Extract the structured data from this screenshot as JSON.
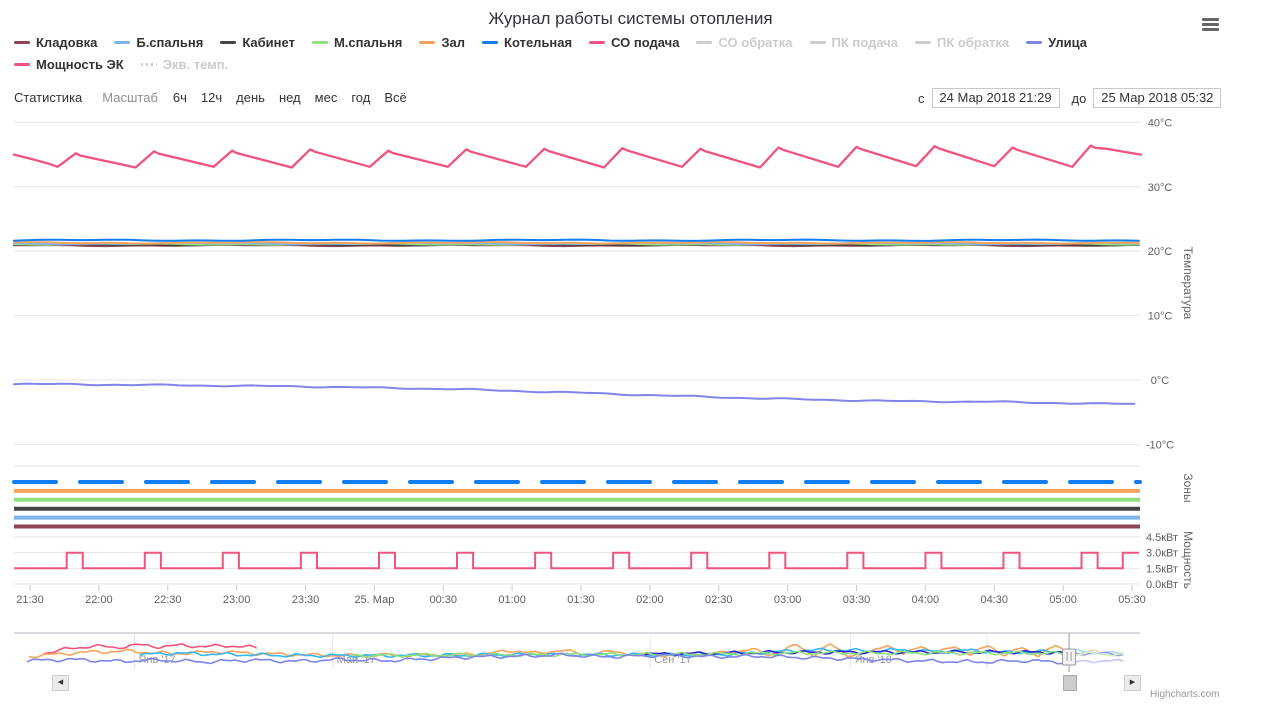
{
  "header": {
    "title": "Журнал работы системы отопления"
  },
  "legend": {
    "rows": [
      [
        {
          "label": "Кладовка",
          "color": "#8d4653",
          "enabled": true
        },
        {
          "label": "Б.спальня",
          "color": "#7cb5ec",
          "enabled": true
        },
        {
          "label": "Кабинет",
          "color": "#434348",
          "enabled": true
        },
        {
          "label": "М.спальня",
          "color": "#90e07d",
          "enabled": true
        },
        {
          "label": "Зал",
          "color": "#f7a35c",
          "enabled": true
        },
        {
          "label": "Котельная",
          "color": "#117df0",
          "enabled": true
        },
        {
          "label": "СО подача",
          "color": "#f0537d",
          "enabled": true
        },
        {
          "label": "СО обратка",
          "color": "#cccccc",
          "enabled": false
        },
        {
          "label": "ПК подача",
          "color": "#cccccc",
          "enabled": false
        },
        {
          "label": "ПК обратка",
          "color": "#cccccc",
          "enabled": false
        },
        {
          "label": "Улица",
          "color": "#8085e9",
          "enabled": true
        }
      ],
      [
        {
          "label": "Мощность ЭК",
          "color": "#f0537d",
          "enabled": true
        },
        {
          "label": "Экв. темп.",
          "color": "#cccccc",
          "enabled": false,
          "dotted": true
        }
      ]
    ]
  },
  "toolbar": {
    "statistics_label": "Статистика",
    "zoom_label": "Масштаб",
    "range_buttons": [
      "6ч",
      "12ч",
      "день",
      "нед",
      "мес",
      "год",
      "Всё"
    ],
    "from_label": "с",
    "from_value": "24 Мар 2018 21:29",
    "to_label": "до",
    "to_value": "25 Мар 2018 05:32"
  },
  "credits": "Highcharts.com",
  "chart_data": {
    "type": "line",
    "title": "Журнал работы системы отопления",
    "x_axis": {
      "unit": "time",
      "start": "24 Мар 2018 21:29",
      "end": "25 Мар 2018 05:32",
      "ticks": [
        {
          "t": 1,
          "label": "21:30"
        },
        {
          "t": 31,
          "label": "22:00"
        },
        {
          "t": 61,
          "label": "22:30"
        },
        {
          "t": 91,
          "label": "23:00"
        },
        {
          "t": 121,
          "label": "23:30"
        },
        {
          "t": 151,
          "label": "25. Мар"
        },
        {
          "t": 181,
          "label": "00:30"
        },
        {
          "t": 211,
          "label": "01:00"
        },
        {
          "t": 241,
          "label": "01:30"
        },
        {
          "t": 271,
          "label": "02:00"
        },
        {
          "t": 301,
          "label": "02:30"
        },
        {
          "t": 331,
          "label": "03:00"
        },
        {
          "t": 361,
          "label": "03:30"
        },
        {
          "t": 391,
          "label": "04:00"
        },
        {
          "t": 421,
          "label": "04:30"
        },
        {
          "t": 451,
          "label": "05:00"
        },
        {
          "t": 481,
          "label": "05:30"
        }
      ]
    },
    "y_axes": [
      {
        "id": "temp",
        "title": "Температура",
        "ticks": [
          {
            "v": 40,
            "label": "40°C"
          },
          {
            "v": 30,
            "label": "30°C"
          },
          {
            "v": 20,
            "label": "20°C"
          },
          {
            "v": 10,
            "label": "10°C"
          },
          {
            "v": 0,
            "label": "0°C"
          },
          {
            "v": -10,
            "label": "-10°C"
          }
        ],
        "range": [
          -13,
          41.5
        ]
      },
      {
        "id": "zones",
        "title": "Зоны"
      },
      {
        "id": "power",
        "title": "Мощность",
        "ticks": [
          {
            "v": 4.5,
            "label": "4.5кВт"
          },
          {
            "v": 3.0,
            "label": "3.0кВт"
          },
          {
            "v": 1.5,
            "label": "1.5кВт"
          },
          {
            "v": 0.0,
            "label": "0.0кВт"
          }
        ],
        "range": [
          0,
          4.5
        ]
      }
    ],
    "supply": {
      "name": "СО подача",
      "axis": "temp",
      "unit": "°C",
      "color": "#f0537d",
      "lead_in": [
        [
          -6,
          35.0
        ],
        [
          3,
          34.2
        ],
        [
          9,
          33.6
        ]
      ],
      "cycles": [
        [
          13,
          33.1,
          21,
          35.2
        ],
        [
          47,
          33.0,
          55,
          35.5
        ],
        [
          81,
          33.1,
          89,
          35.6
        ],
        [
          115,
          33.0,
          123,
          35.8
        ],
        [
          149,
          33.1,
          157,
          35.6
        ],
        [
          183,
          33.1,
          191,
          35.8
        ],
        [
          217,
          33.1,
          225,
          35.9
        ],
        [
          251,
          33.0,
          259,
          36.0
        ],
        [
          285,
          33.1,
          293,
          35.9
        ],
        [
          319,
          33.0,
          327,
          36.1
        ],
        [
          353,
          33.1,
          361,
          36.2
        ],
        [
          387,
          33.2,
          395,
          36.3
        ],
        [
          421,
          33.2,
          429,
          36.1
        ],
        [
          455,
          33.1,
          463,
          36.4
        ]
      ],
      "tail": [
        [
          470,
          35.9
        ],
        [
          478,
          35.4
        ],
        [
          485,
          35.0
        ]
      ]
    },
    "rooms": [
      {
        "name": "Котельная",
        "color": "#117df0",
        "value_c": 21.7
      },
      {
        "name": "Зал",
        "color": "#f7a35c",
        "value_c": 21.3
      },
      {
        "name": "Б.спальня",
        "color": "#7cb5ec",
        "value_c": 21.2
      },
      {
        "name": "М.спальня",
        "color": "#90e07d",
        "value_c": 21.1
      },
      {
        "name": "Кабинет",
        "color": "#434348",
        "value_c": 21.0
      },
      {
        "name": "Кладовка",
        "color": "#8d4653",
        "value_c": 20.9
      }
    ],
    "street": {
      "name": "Улица",
      "axis": "temp",
      "unit": "°C",
      "color": "#8085e9",
      "points": [
        [
          -6,
          -0.6
        ],
        [
          60,
          -0.8
        ],
        [
          119,
          -1.0
        ],
        [
          184,
          -1.4
        ],
        [
          241,
          -2.0
        ],
        [
          293,
          -2.6
        ],
        [
          336,
          -3.0
        ],
        [
          380,
          -3.3
        ],
        [
          423,
          -3.4
        ],
        [
          467,
          -3.7
        ],
        [
          485,
          -3.7
        ]
      ]
    },
    "zones_series": [
      {
        "name": "Котельная",
        "color": "#117df0",
        "line": "dashed",
        "state": "on"
      },
      {
        "name": "Зал",
        "color": "#f7a35c",
        "line": "solid",
        "state": "on"
      },
      {
        "name": "М.спальня",
        "color": "#90e07d",
        "line": "solid",
        "state": "on"
      },
      {
        "name": "Кабинет",
        "color": "#434348",
        "line": "solid",
        "state": "on"
      },
      {
        "name": "Б.спальня",
        "color": "#7cb5ec",
        "line": "solid",
        "state": "on"
      },
      {
        "name": "Кладовка",
        "color": "#8d4653",
        "line": "solid",
        "state": "on"
      }
    ],
    "power": {
      "name": "Мощность ЭК",
      "axis": "power",
      "unit": "кВт",
      "color": "#f0537d",
      "baseline_kw": 1.5,
      "peak_kw": 3.0,
      "pulse_minutes": 7,
      "pulse_starts_min": [
        17,
        51,
        85,
        119,
        153,
        187,
        221,
        255,
        289,
        323,
        357,
        391,
        425,
        459,
        477
      ]
    },
    "navigator": {
      "labels": [
        {
          "text": "Янв '17",
          "f": 0.107
        },
        {
          "text": "Май '17",
          "f": 0.283
        },
        {
          "text": "Сен '17",
          "f": 0.565
        },
        {
          "text": "Янв '18",
          "f": 0.743
        }
      ],
      "extra_gridline_f": 0.864,
      "handle_f": 0.937,
      "series": [
        {
          "name": "СО подача",
          "color": "#f0537d",
          "points": [
            [
              0.027,
              0.5
            ],
            [
              0.05,
              0.36
            ],
            [
              0.07,
              0.28
            ],
            [
              0.09,
              0.33
            ],
            [
              0.11,
              0.25
            ],
            [
              0.13,
              0.3
            ],
            [
              0.15,
              0.26
            ],
            [
              0.17,
              0.3
            ],
            [
              0.19,
              0.27
            ],
            [
              0.205,
              0.3
            ],
            [
              0.215,
              0.34
            ]
          ]
        },
        {
          "name": "Зал",
          "color": "#f7a35c",
          "points": [
            [
              0.014,
              0.6
            ],
            [
              0.06,
              0.48
            ],
            [
              0.1,
              0.44
            ],
            [
              0.14,
              0.52
            ],
            [
              0.18,
              0.46
            ],
            [
              0.22,
              0.52
            ],
            [
              0.26,
              0.56
            ],
            [
              0.3,
              0.58
            ],
            [
              0.34,
              0.56
            ],
            [
              0.38,
              0.57
            ],
            [
              0.42,
              0.52
            ],
            [
              0.445,
              0.42
            ],
            [
              0.465,
              0.52
            ],
            [
              0.485,
              0.4
            ],
            [
              0.505,
              0.54
            ],
            [
              0.53,
              0.46
            ],
            [
              0.56,
              0.56
            ],
            [
              0.6,
              0.54
            ],
            [
              0.63,
              0.5
            ],
            [
              0.655,
              0.38
            ],
            [
              0.67,
              0.56
            ],
            [
              0.695,
              0.26
            ],
            [
              0.71,
              0.56
            ],
            [
              0.725,
              0.24
            ],
            [
              0.74,
              0.56
            ],
            [
              0.76,
              0.5
            ],
            [
              0.775,
              0.22
            ],
            [
              0.79,
              0.56
            ],
            [
              0.805,
              0.26
            ],
            [
              0.82,
              0.52
            ],
            [
              0.835,
              0.28
            ],
            [
              0.85,
              0.56
            ],
            [
              0.865,
              0.26
            ],
            [
              0.88,
              0.56
            ],
            [
              0.895,
              0.34
            ],
            [
              0.91,
              0.56
            ],
            [
              0.925,
              0.28
            ],
            [
              0.94,
              0.58
            ],
            [
              0.955,
              0.44
            ],
            [
              0.985,
              0.56
            ]
          ]
        },
        {
          "name": "Котельная",
          "color": "#35b8ee",
          "points": [
            [
              0.112,
              0.56
            ],
            [
              0.14,
              0.5
            ],
            [
              0.18,
              0.54
            ],
            [
              0.25,
              0.58
            ],
            [
              0.33,
              0.58
            ],
            [
              0.4,
              0.57
            ],
            [
              0.47,
              0.54
            ],
            [
              0.55,
              0.56
            ],
            [
              0.62,
              0.56
            ],
            [
              0.655,
              0.5
            ],
            [
              0.7,
              0.42
            ],
            [
              0.73,
              0.4
            ],
            [
              0.76,
              0.44
            ],
            [
              0.79,
              0.4
            ],
            [
              0.82,
              0.46
            ],
            [
              0.85,
              0.42
            ],
            [
              0.88,
              0.48
            ],
            [
              0.91,
              0.46
            ],
            [
              0.94,
              0.44
            ],
            [
              0.985,
              0.52
            ]
          ]
        },
        {
          "name": "Кабинет",
          "color": "#2a2ad0",
          "points": [
            [
              0.56,
              0.54
            ],
            [
              0.6,
              0.52
            ],
            [
              0.64,
              0.5
            ],
            [
              0.68,
              0.48
            ],
            [
              0.72,
              0.48
            ],
            [
              0.76,
              0.47
            ],
            [
              0.8,
              0.48
            ],
            [
              0.84,
              0.47
            ],
            [
              0.88,
              0.47
            ],
            [
              0.92,
              0.48
            ],
            [
              0.96,
              0.52
            ],
            [
              0.985,
              0.54
            ]
          ]
        },
        {
          "name": "М.спальня",
          "color": "#90e07d",
          "points": [
            [
              0.3,
              0.58
            ],
            [
              0.4,
              0.56
            ],
            [
              0.5,
              0.55
            ],
            [
              0.6,
              0.54
            ],
            [
              0.7,
              0.5
            ],
            [
              0.8,
              0.5
            ],
            [
              0.9,
              0.5
            ],
            [
              0.985,
              0.54
            ]
          ]
        },
        {
          "name": "Улица",
          "color": "#8085e9",
          "points": [
            [
              0.012,
              0.74
            ],
            [
              0.05,
              0.7
            ],
            [
              0.09,
              0.76
            ],
            [
              0.13,
              0.72
            ],
            [
              0.17,
              0.78
            ],
            [
              0.21,
              0.72
            ],
            [
              0.25,
              0.76
            ],
            [
              0.29,
              0.7
            ],
            [
              0.33,
              0.74
            ],
            [
              0.37,
              0.68
            ],
            [
              0.41,
              0.62
            ],
            [
              0.45,
              0.6
            ],
            [
              0.49,
              0.56
            ],
            [
              0.52,
              0.62
            ],
            [
              0.55,
              0.6
            ],
            [
              0.58,
              0.57
            ],
            [
              0.62,
              0.62
            ],
            [
              0.66,
              0.6
            ],
            [
              0.7,
              0.64
            ],
            [
              0.74,
              0.68
            ],
            [
              0.78,
              0.72
            ],
            [
              0.82,
              0.76
            ],
            [
              0.86,
              0.78
            ],
            [
              0.9,
              0.74
            ],
            [
              0.94,
              0.8
            ],
            [
              0.96,
              0.74
            ],
            [
              0.985,
              0.76
            ]
          ]
        }
      ]
    }
  }
}
